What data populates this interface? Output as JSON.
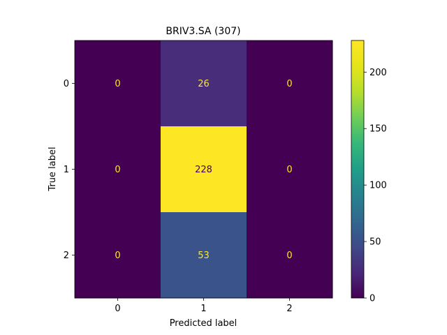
{
  "chart_data": {
    "type": "heatmap",
    "title": "BRIV3.SA (307)",
    "xlabel": "Predicted label",
    "ylabel": "True label",
    "x_categories": [
      "0",
      "1",
      "2"
    ],
    "y_categories": [
      "0",
      "1",
      "2"
    ],
    "matrix": [
      [
        0,
        26,
        0
      ],
      [
        0,
        228,
        0
      ],
      [
        0,
        53,
        0
      ]
    ],
    "colormap": "viridis",
    "color_range": [
      0,
      228
    ],
    "colorbar_ticks": [
      0,
      50,
      100,
      150,
      200
    ],
    "text_colors": {
      "dark_cell": "#fde725",
      "light_cell": "#440154"
    }
  }
}
